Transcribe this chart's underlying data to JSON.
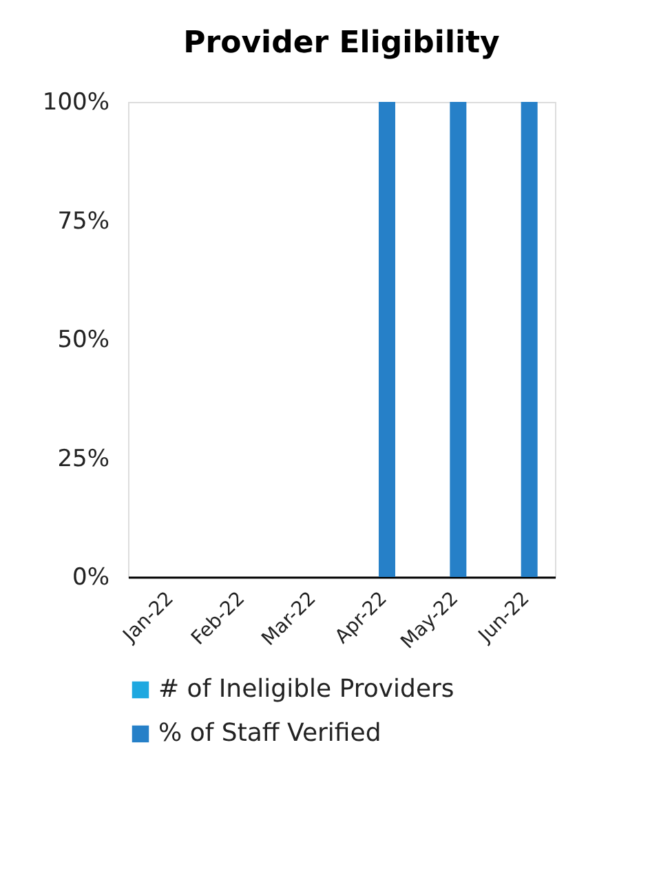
{
  "chart_data": {
    "type": "bar",
    "title": "Provider Eligibility",
    "categories": [
      "Jan-22",
      "Feb-22",
      "Mar-22",
      "Apr-22",
      "May-22",
      "Jun-22"
    ],
    "series": [
      {
        "name": "# of Ineligible Providers",
        "color": "#1ea8e0",
        "values": [
          0,
          0,
          0,
          0,
          0,
          0
        ]
      },
      {
        "name": "% of Staff Verified",
        "color": "#2680c8",
        "values": [
          0,
          0,
          0,
          100,
          100,
          100
        ]
      }
    ],
    "ylim": [
      0,
      100
    ],
    "yticks": [
      {
        "value": 0,
        "label": "0%"
      },
      {
        "value": 25,
        "label": "25%"
      },
      {
        "value": 50,
        "label": "50%"
      },
      {
        "value": 75,
        "label": "75%"
      },
      {
        "value": 100,
        "label": "100%"
      }
    ],
    "grid": false,
    "legend": "bottom"
  }
}
